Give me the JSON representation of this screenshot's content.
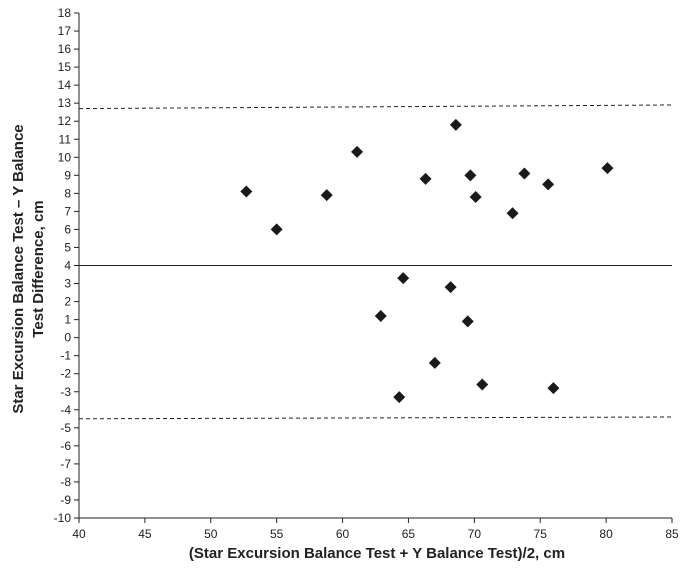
{
  "chart_data": {
    "type": "scatter",
    "xlabel": "(Star Excursion Balance Test + Y Balance Test)/2, cm",
    "ylabel": [
      "Star Excursion Balance Test – Y Balance",
      "Test Difference, cm"
    ],
    "xlim": [
      40,
      85
    ],
    "ylim": [
      -10,
      18
    ],
    "xticks": [
      40,
      45,
      50,
      55,
      60,
      65,
      70,
      75,
      80,
      85
    ],
    "yticks": [
      -10,
      -9,
      -8,
      -7,
      -6,
      -5,
      -4,
      -3,
      -2,
      -1,
      0,
      1,
      2,
      3,
      4,
      5,
      6,
      7,
      8,
      9,
      10,
      11,
      12,
      13,
      14,
      15,
      16,
      17,
      18
    ],
    "grid": false,
    "marker": "diamond",
    "marker_color": "#1a1a1a",
    "points": [
      {
        "x": 52.7,
        "y": 8.1
      },
      {
        "x": 55.0,
        "y": 6.0
      },
      {
        "x": 58.8,
        "y": 7.9
      },
      {
        "x": 61.1,
        "y": 10.3
      },
      {
        "x": 62.9,
        "y": 1.2
      },
      {
        "x": 64.3,
        "y": -3.3
      },
      {
        "x": 64.6,
        "y": 3.3
      },
      {
        "x": 66.3,
        "y": 8.8
      },
      {
        "x": 67.0,
        "y": -1.4
      },
      {
        "x": 68.2,
        "y": 2.8
      },
      {
        "x": 68.6,
        "y": 11.8
      },
      {
        "x": 69.5,
        "y": 0.9
      },
      {
        "x": 69.7,
        "y": 9.0
      },
      {
        "x": 70.1,
        "y": 7.8
      },
      {
        "x": 70.6,
        "y": -2.6
      },
      {
        "x": 72.9,
        "y": 6.9
      },
      {
        "x": 73.8,
        "y": 9.1
      },
      {
        "x": 75.6,
        "y": 8.5
      },
      {
        "x": 76.0,
        "y": -2.8
      },
      {
        "x": 80.1,
        "y": 9.4
      }
    ],
    "reference_lines": [
      {
        "style": "solid",
        "y_start": 4.0,
        "y_end": 4.0
      },
      {
        "style": "dashed",
        "y_start": 12.7,
        "y_end": 12.9
      },
      {
        "style": "dashed",
        "y_start": -4.5,
        "y_end": -4.4
      }
    ]
  }
}
